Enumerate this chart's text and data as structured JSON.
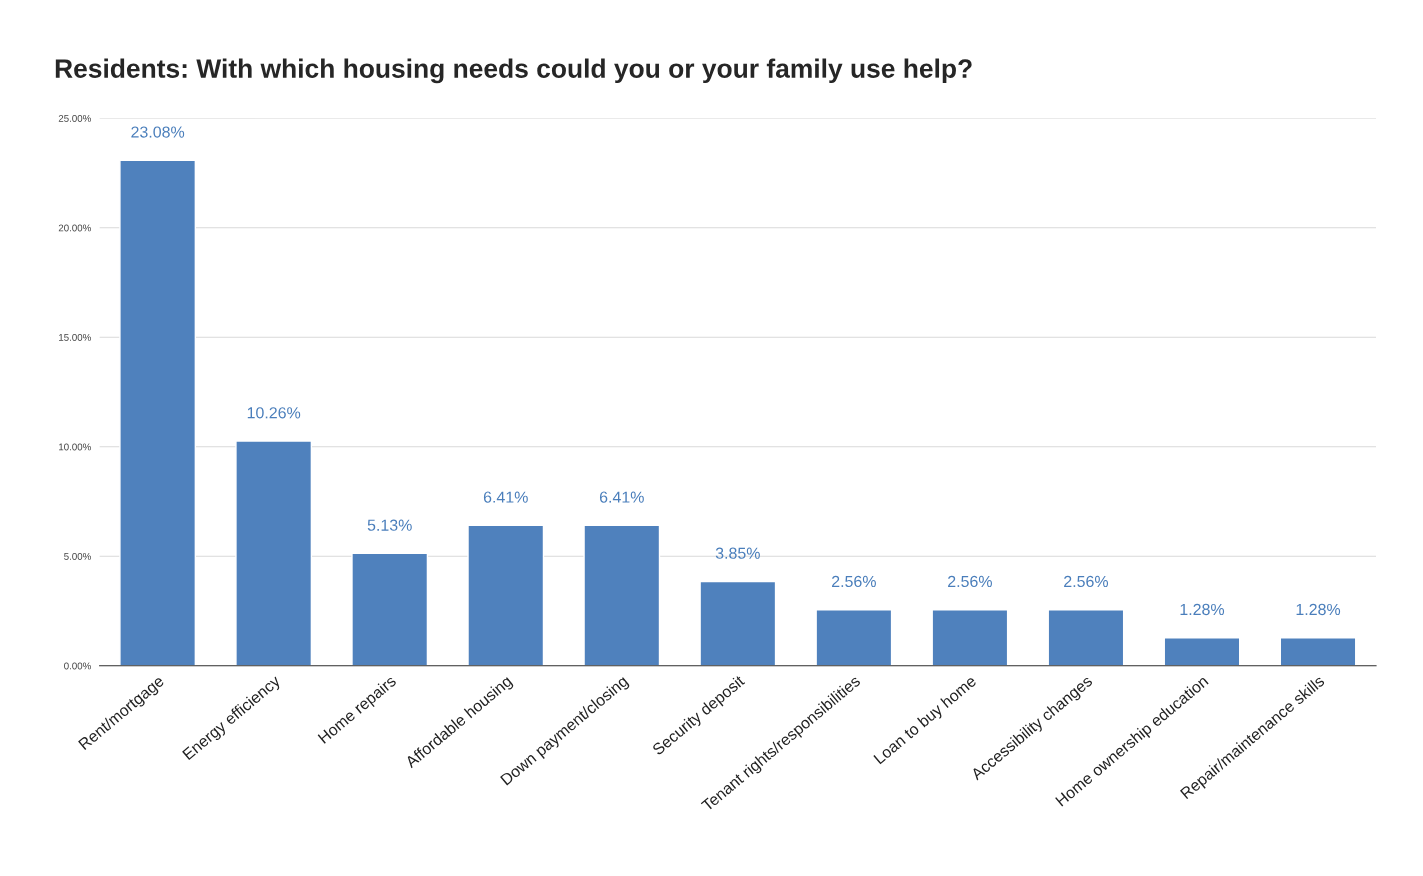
{
  "chart_data": {
    "type": "bar",
    "title": "Residents: With which housing needs could you or your family use help?",
    "categories": [
      "Rent/mortgage",
      "Energy efficiency",
      "Home repairs",
      "Affordable housing",
      "Down payment/closing",
      "Security deposit",
      "Tenant rights/responsibilities",
      "Loan to buy home",
      "Accessibility changes",
      "Home ownership education",
      "Repair/maintenance skills"
    ],
    "values": [
      23.08,
      10.26,
      5.13,
      6.41,
      6.41,
      3.85,
      2.56,
      2.56,
      2.56,
      1.28,
      1.28
    ],
    "value_labels": [
      "23.08%",
      "10.26%",
      "5.13%",
      "6.41%",
      "6.41%",
      "3.85%",
      "2.56%",
      "2.56%",
      "2.56%",
      "1.28%",
      "1.28%"
    ],
    "color": "#4f81bd",
    "ylim": [
      0,
      25
    ],
    "yticks": [
      {
        "value": 0,
        "label": "0.00%"
      },
      {
        "value": 5,
        "label": "5.00%"
      },
      {
        "value": 10,
        "label": "10.00%"
      },
      {
        "value": 15,
        "label": "15.00%"
      },
      {
        "value": 20,
        "label": "20.00%"
      },
      {
        "value": 25,
        "label": "25.00%"
      }
    ],
    "grid": "y"
  }
}
